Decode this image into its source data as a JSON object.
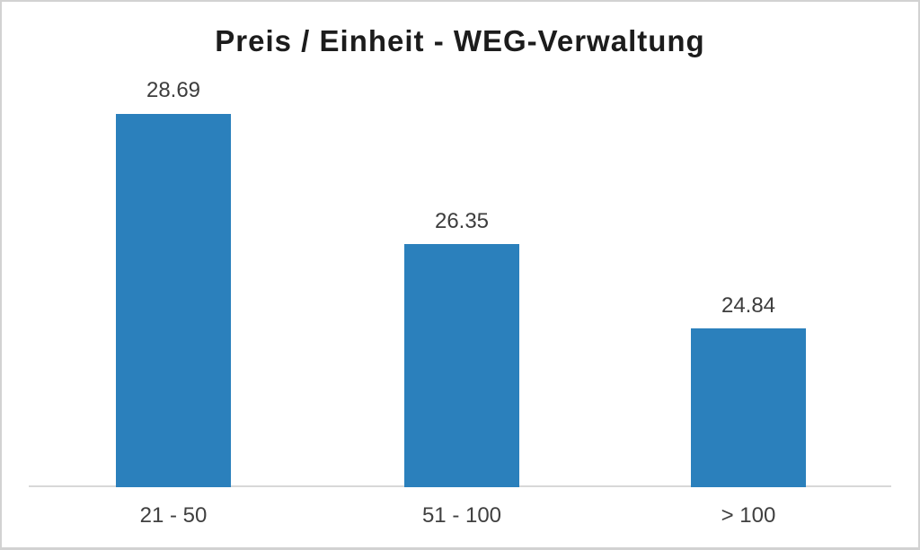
{
  "chart_data": {
    "type": "bar",
    "title": "Preis / Einheit - WEG-Verwaltung",
    "categories": [
      "21 - 50",
      "51 - 100",
      "> 100"
    ],
    "values": [
      28.69,
      26.35,
      24.84
    ],
    "value_labels": [
      "28.69",
      "26.35",
      "24.84"
    ],
    "ylim": [
      22,
      30
    ],
    "xlabel": "",
    "ylabel": "",
    "grid": false,
    "legend": false,
    "bar_color": "#2b80bc",
    "axis_line_color": "#d8d8d8",
    "title_color": "#1c1c1c",
    "value_label_color": "#3d3d3d",
    "category_label_color": "#404040",
    "background_color": "#ffffff",
    "frame_border_color": "#d2d2d2"
  }
}
